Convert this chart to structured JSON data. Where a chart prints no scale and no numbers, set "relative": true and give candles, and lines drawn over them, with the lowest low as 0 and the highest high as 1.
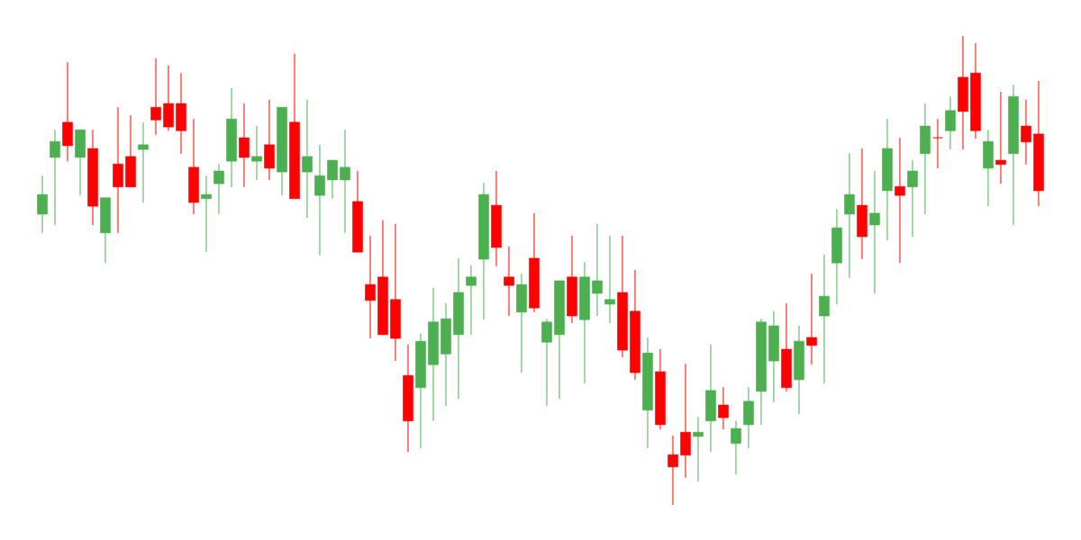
{
  "chart_data": {
    "type": "candlestick",
    "relative": true,
    "categories": [
      null,
      null,
      null,
      null,
      null,
      null,
      null,
      null,
      null,
      null,
      null,
      null,
      null,
      null,
      null,
      null,
      null,
      null,
      null,
      null,
      null,
      null,
      null,
      null,
      null,
      null,
      null,
      null,
      null,
      null,
      null,
      null,
      null,
      null,
      null,
      null,
      null,
      null,
      null,
      null,
      null,
      null,
      null,
      null,
      null,
      null,
      null,
      null,
      null,
      null,
      null,
      null,
      null,
      null,
      null,
      null,
      null,
      null,
      null,
      null,
      null,
      null,
      null,
      null,
      null,
      null,
      null,
      null,
      null,
      null,
      null,
      null,
      null,
      null,
      null,
      null,
      null,
      null,
      null,
      null
    ],
    "ohlc": [
      [
        0.62,
        0.702,
        0.58,
        0.662
      ],
      [
        0.741,
        0.8,
        0.597,
        0.775
      ],
      [
        0.816,
        0.944,
        0.733,
        0.766
      ],
      [
        0.741,
        0.8,
        0.66,
        0.8
      ],
      [
        0.76,
        0.8,
        0.597,
        0.637
      ],
      [
        0.58,
        0.655,
        0.516,
        0.655
      ],
      [
        0.727,
        0.848,
        0.58,
        0.678
      ],
      [
        0.743,
        0.831,
        0.678,
        0.678
      ],
      [
        0.758,
        0.816,
        0.645,
        0.768
      ],
      [
        0.848,
        0.952,
        0.789,
        0.821
      ],
      [
        0.856,
        0.937,
        0.798,
        0.806
      ],
      [
        0.856,
        0.921,
        0.749,
        0.798
      ],
      [
        0.72,
        0.823,
        0.62,
        0.645
      ],
      [
        0.653,
        0.702,
        0.539,
        0.662
      ],
      [
        0.685,
        0.727,
        0.62,
        0.712
      ],
      [
        0.733,
        0.889,
        0.678,
        0.823
      ],
      [
        0.783,
        0.856,
        0.678,
        0.741
      ],
      [
        0.733,
        0.808,
        0.693,
        0.743
      ],
      [
        0.768,
        0.864,
        0.693,
        0.718
      ],
      [
        0.71,
        0.848,
        0.66,
        0.848
      ],
      [
        0.816,
        0.962,
        0.653,
        0.653
      ],
      [
        0.71,
        0.864,
        0.612,
        0.743
      ],
      [
        0.66,
        0.768,
        0.532,
        0.702
      ],
      [
        0.693,
        0.735,
        0.653,
        0.735
      ],
      [
        0.693,
        0.8,
        0.58,
        0.72
      ],
      [
        0.647,
        0.712,
        0.539,
        0.539
      ],
      [
        0.47,
        0.574,
        0.355,
        0.436
      ],
      [
        0.486,
        0.607,
        0.363,
        0.363
      ],
      [
        0.438,
        0.599,
        0.307,
        0.355
      ],
      [
        0.276,
        0.342,
        0.113,
        0.179
      ],
      [
        0.25,
        0.365,
        0.121,
        0.349
      ],
      [
        0.299,
        0.463,
        0.179,
        0.39
      ],
      [
        0.322,
        0.43,
        0.211,
        0.397
      ],
      [
        0.363,
        0.526,
        0.226,
        0.453
      ],
      [
        0.468,
        0.511,
        0.363,
        0.486
      ],
      [
        0.524,
        0.687,
        0.395,
        0.662
      ],
      [
        0.639,
        0.712,
        0.509,
        0.549
      ],
      [
        0.486,
        0.551,
        0.403,
        0.468
      ],
      [
        0.411,
        0.493,
        0.282,
        0.47
      ],
      [
        0.526,
        0.622,
        0.411,
        0.42
      ],
      [
        0.347,
        0.397,
        0.211,
        0.39
      ],
      [
        0.363,
        0.478,
        0.226,
        0.478
      ],
      [
        0.486,
        0.574,
        0.388,
        0.403
      ],
      [
        0.395,
        0.518,
        0.259,
        0.486
      ],
      [
        0.451,
        0.599,
        0.403,
        0.478
      ],
      [
        0.428,
        0.574,
        0.388,
        0.438
      ],
      [
        0.453,
        0.574,
        0.315,
        0.33
      ],
      [
        0.413,
        0.501,
        0.267,
        0.282
      ],
      [
        0.202,
        0.357,
        0.121,
        0.324
      ],
      [
        0.284,
        0.332,
        0.161,
        0.171
      ],
      [
        0.107,
        0.148,
        0,
        0.081
      ],
      [
        0.155,
        0.301,
        0.058,
        0.106
      ],
      [
        0.146,
        0.188,
        0.05,
        0.155
      ],
      [
        0.179,
        0.342,
        0.113,
        0.244
      ],
      [
        0.213,
        0.251,
        0.161,
        0.186
      ],
      [
        0.131,
        0.18,
        0.065,
        0.163
      ],
      [
        0.171,
        0.251,
        0.121,
        0.221
      ],
      [
        0.242,
        0.397,
        0.171,
        0.39
      ],
      [
        0.307,
        0.413,
        0.219,
        0.382
      ],
      [
        0.332,
        0.43,
        0.242,
        0.25
      ],
      [
        0.267,
        0.382,
        0.194,
        0.349
      ],
      [
        0.357,
        0.493,
        0.299,
        0.34
      ],
      [
        0.403,
        0.534,
        0.259,
        0.445
      ],
      [
        0.516,
        0.631,
        0.428,
        0.591
      ],
      [
        0.62,
        0.75,
        0.484,
        0.662
      ],
      [
        0.639,
        0.76,
        0.524,
        0.572
      ],
      [
        0.597,
        0.712,
        0.451,
        0.622
      ],
      [
        0.67,
        0.823,
        0.564,
        0.76
      ],
      [
        0.679,
        0.783,
        0.516,
        0.66
      ],
      [
        0.678,
        0.735,
        0.572,
        0.712
      ],
      [
        0.749,
        0.856,
        0.62,
        0.808
      ],
      [
        0.783,
        0.823,
        0.718,
        0.783
      ],
      [
        0.798,
        0.871,
        0.758,
        0.841
      ],
      [
        0.912,
        1,
        0.758,
        0.839
      ],
      [
        0.921,
        0.985,
        0.781,
        0.798
      ],
      [
        0.718,
        0.8,
        0.637,
        0.775
      ],
      [
        0.735,
        0.881,
        0.685,
        0.726
      ],
      [
        0.749,
        0.896,
        0.597,
        0.871
      ],
      [
        0.808,
        0.864,
        0.726,
        0.774
      ],
      [
        0.791,
        0.904,
        0.637,
        0.67
      ]
    ],
    "colors": [
      "#4caf50",
      "#4caf50",
      "#ff0000",
      "#4caf50",
      "#ff0000",
      "#4caf50",
      "#ff0000",
      "#ff0000",
      "#4caf50",
      "#ff0000",
      "#ff0000",
      "#ff0000",
      "#ff0000",
      "#4caf50",
      "#4caf50",
      "#4caf50",
      "#ff0000",
      "#4caf50",
      "#ff0000",
      "#4caf50",
      "#ff0000",
      "#4caf50",
      "#4caf50",
      "#4caf50",
      "#4caf50",
      "#ff0000",
      "#ff0000",
      "#ff0000",
      "#ff0000",
      "#ff0000",
      "#4caf50",
      "#4caf50",
      "#4caf50",
      "#4caf50",
      "#4caf50",
      "#4caf50",
      "#ff0000",
      "#ff0000",
      "#4caf50",
      "#ff0000",
      "#4caf50",
      "#4caf50",
      "#ff0000",
      "#4caf50",
      "#4caf50",
      "#4caf50",
      "#ff0000",
      "#ff0000",
      "#4caf50",
      "#ff0000",
      "#ff0000",
      "#ff0000",
      "#4caf50",
      "#4caf50",
      "#ff0000",
      "#4caf50",
      "#4caf50",
      "#4caf50",
      "#4caf50",
      "#ff0000",
      "#4caf50",
      "#ff0000",
      "#4caf50",
      "#4caf50",
      "#4caf50",
      "#ff0000",
      "#4caf50",
      "#4caf50",
      "#ff0000",
      "#4caf50",
      "#4caf50",
      "#ff0000",
      "#4caf50",
      "#ff0000",
      "#ff0000",
      "#4caf50",
      "#ff0000",
      "#4caf50",
      "#ff0000",
      "#ff0000"
    ]
  }
}
